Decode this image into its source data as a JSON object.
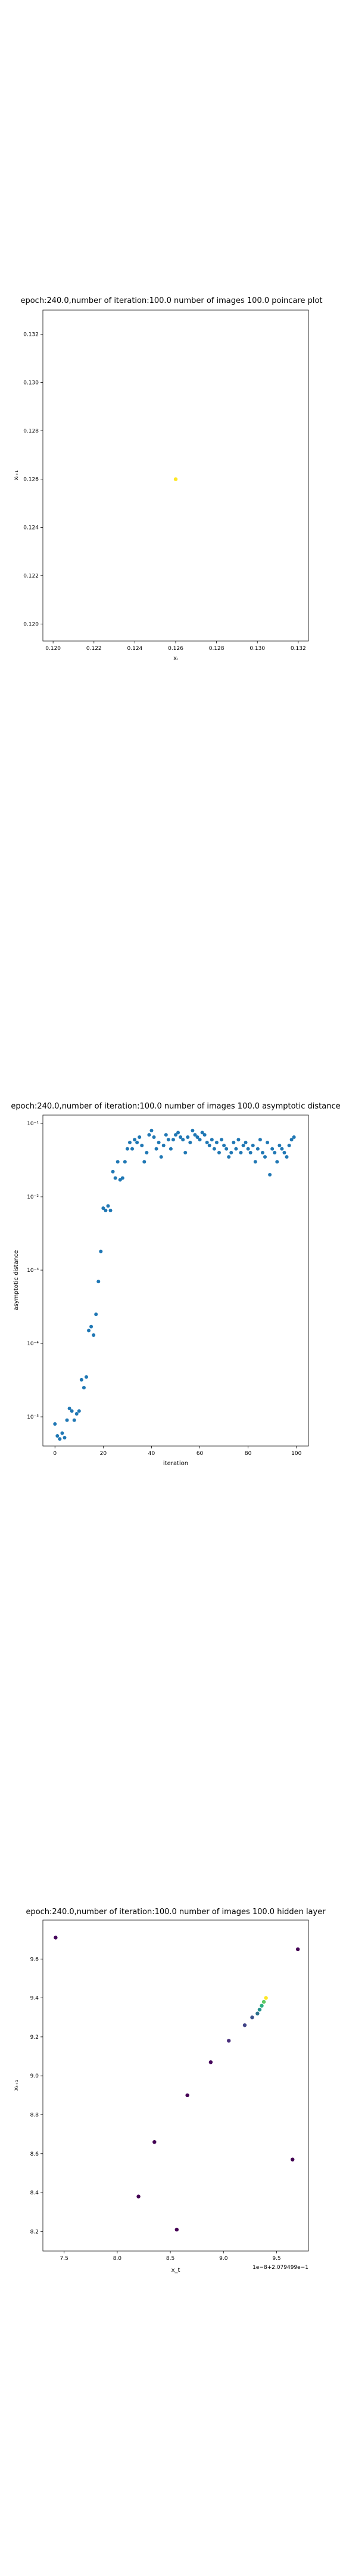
{
  "chart_data": [
    {
      "type": "scatter",
      "title": "epoch:240.0,number of iteration:100.0  number of images 100.0 poincare plot",
      "xlabel": "xᵢ",
      "ylabel": "xᵢ₊₁",
      "xlim": [
        0.1195,
        0.1325
      ],
      "ylim": [
        0.1193,
        0.133
      ],
      "xticks": [
        0.12,
        0.122,
        0.124,
        0.126,
        0.128,
        0.13,
        0.132
      ],
      "yticks": [
        0.12,
        0.122,
        0.124,
        0.126,
        0.128,
        0.13,
        0.132
      ],
      "grid": false,
      "points": [
        {
          "x": 0.126,
          "y": 0.126,
          "color": "#fde725"
        }
      ]
    },
    {
      "type": "scatter",
      "title": "epoch:240.0,number of iteration:100.0  number of images 100.0 asymptotic distance",
      "xlabel": "iteration",
      "ylabel": "asymptotic distance",
      "yscale": "log",
      "xlim": [
        -5,
        105
      ],
      "ylim": [
        4e-06,
        0.13
      ],
      "xticks": [
        0,
        20,
        40,
        60,
        80,
        100
      ],
      "yticks": [
        1e-05,
        0.0001,
        0.001,
        0.01,
        0.1
      ],
      "ytick_labels": [
        "10⁻⁵",
        "10⁻⁴",
        "10⁻³",
        "10⁻²",
        "10⁻¹"
      ],
      "grid": false,
      "color": "#1f77b4",
      "x": [
        0,
        1,
        2,
        3,
        4,
        5,
        6,
        7,
        8,
        9,
        10,
        11,
        12,
        13,
        14,
        15,
        16,
        17,
        18,
        19,
        20,
        21,
        22,
        23,
        24,
        25,
        26,
        27,
        28,
        29,
        30,
        31,
        32,
        33,
        34,
        35,
        36,
        37,
        38,
        39,
        40,
        41,
        42,
        43,
        44,
        45,
        46,
        47,
        48,
        49,
        50,
        51,
        52,
        53,
        54,
        55,
        56,
        57,
        58,
        59,
        60,
        61,
        62,
        63,
        64,
        65,
        66,
        67,
        68,
        69,
        70,
        71,
        72,
        73,
        74,
        75,
        76,
        77,
        78,
        79,
        80,
        81,
        82,
        83,
        84,
        85,
        86,
        87,
        88,
        89,
        90,
        91,
        92,
        93,
        94,
        95,
        96,
        97,
        98,
        99
      ],
      "y": [
        8e-06,
        5.5e-06,
        5e-06,
        6e-06,
        5.2e-06,
        9e-06,
        1.3e-05,
        1.2e-05,
        9e-06,
        1.1e-05,
        1.2e-05,
        3.2e-05,
        2.5e-05,
        3.5e-05,
        0.00015,
        0.00017,
        0.00013,
        0.00025,
        0.0007,
        0.0018,
        0.007,
        0.0065,
        0.0075,
        0.0065,
        0.022,
        0.018,
        0.03,
        0.017,
        0.018,
        0.03,
        0.045,
        0.055,
        0.045,
        0.06,
        0.055,
        0.065,
        0.05,
        0.03,
        0.04,
        0.07,
        0.08,
        0.065,
        0.045,
        0.055,
        0.035,
        0.05,
        0.07,
        0.06,
        0.045,
        0.06,
        0.07,
        0.075,
        0.065,
        0.06,
        0.04,
        0.065,
        0.055,
        0.08,
        0.07,
        0.065,
        0.06,
        0.075,
        0.07,
        0.055,
        0.05,
        0.06,
        0.045,
        0.055,
        0.04,
        0.06,
        0.05,
        0.045,
        0.035,
        0.04,
        0.055,
        0.045,
        0.06,
        0.04,
        0.05,
        0.055,
        0.045,
        0.04,
        0.05,
        0.03,
        0.045,
        0.06,
        0.04,
        0.035,
        0.055,
        0.02,
        0.045,
        0.04,
        0.03,
        0.05,
        0.045,
        0.04,
        0.035,
        0.05,
        0.06,
        0.065
      ]
    },
    {
      "type": "scatter",
      "title": "epoch:240.0,number of iteration:100.0  number of images 100.0 hidden layer",
      "xlabel": "x_t",
      "ylabel": "xₜ₊₁",
      "offset_text_x": "1e−8+2.079499e−1",
      "xlim": [
        7.3,
        9.8
      ],
      "ylim": [
        8.1,
        9.8
      ],
      "xticks": [
        7.5,
        8.0,
        8.5,
        9.0,
        9.5
      ],
      "yticks": [
        8.2,
        8.4,
        8.6,
        8.8,
        9.0,
        9.2,
        9.4,
        9.6
      ],
      "grid": false,
      "points": [
        {
          "x": 7.42,
          "y": 9.71,
          "color": "#46085c"
        },
        {
          "x": 9.7,
          "y": 9.65,
          "color": "#440154"
        },
        {
          "x": 9.4,
          "y": 9.4,
          "color": "#fde725"
        },
        {
          "x": 9.38,
          "y": 9.38,
          "color": "#5ec962"
        },
        {
          "x": 9.36,
          "y": 9.36,
          "color": "#2ab07f"
        },
        {
          "x": 9.34,
          "y": 9.34,
          "color": "#21918c"
        },
        {
          "x": 9.32,
          "y": 9.32,
          "color": "#2c728e"
        },
        {
          "x": 9.27,
          "y": 9.3,
          "color": "#3b528b"
        },
        {
          "x": 9.2,
          "y": 9.26,
          "color": "#414487"
        },
        {
          "x": 9.05,
          "y": 9.18,
          "color": "#472d7b"
        },
        {
          "x": 8.88,
          "y": 9.07,
          "color": "#46085c"
        },
        {
          "x": 8.66,
          "y": 8.9,
          "color": "#440154"
        },
        {
          "x": 8.35,
          "y": 8.66,
          "color": "#440154"
        },
        {
          "x": 8.2,
          "y": 8.38,
          "color": "#440154"
        },
        {
          "x": 8.56,
          "y": 8.21,
          "color": "#440154"
        },
        {
          "x": 9.65,
          "y": 8.57,
          "color": "#440154"
        }
      ]
    }
  ]
}
